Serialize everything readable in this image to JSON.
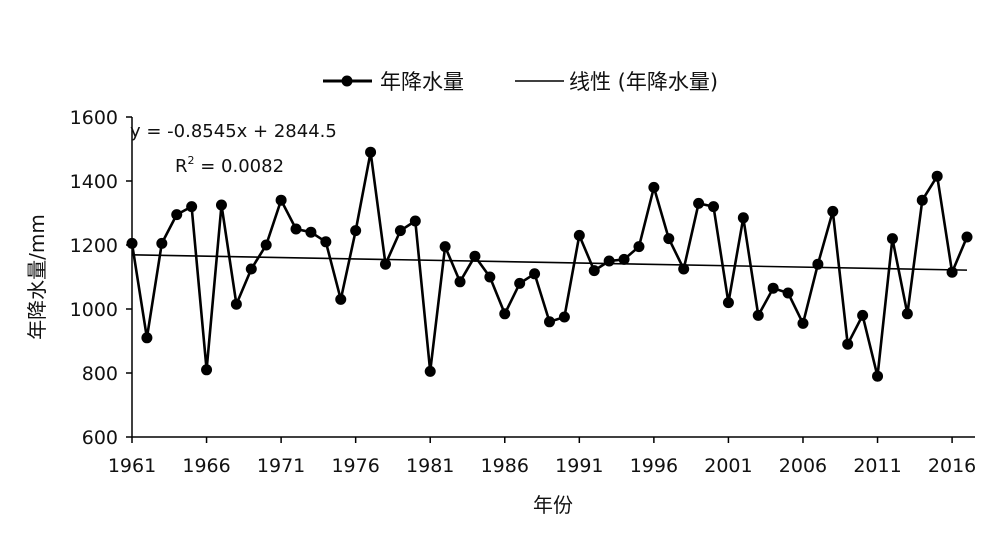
{
  "chart_data": {
    "type": "line",
    "title": "",
    "xlabel": "年份",
    "ylabel": "年降水量/mm",
    "xlim": [
      1961,
      2017
    ],
    "ylim": [
      600,
      1600
    ],
    "x_ticks": [
      1961,
      1966,
      1971,
      1976,
      1981,
      1986,
      1991,
      1996,
      2001,
      2006,
      2011,
      2016
    ],
    "y_ticks": [
      600,
      800,
      1000,
      1200,
      1400,
      1600
    ],
    "grid": false,
    "legend_position": "top",
    "x": [
      1961,
      1962,
      1963,
      1964,
      1965,
      1966,
      1967,
      1968,
      1969,
      1970,
      1971,
      1972,
      1973,
      1974,
      1975,
      1976,
      1977,
      1978,
      1979,
      1980,
      1981,
      1982,
      1983,
      1984,
      1985,
      1986,
      1987,
      1988,
      1989,
      1990,
      1991,
      1992,
      1993,
      1994,
      1995,
      1996,
      1997,
      1998,
      1999,
      2000,
      2001,
      2002,
      2003,
      2004,
      2005,
      2006,
      2007,
      2008,
      2009,
      2010,
      2011,
      2012,
      2013,
      2014,
      2015,
      2016,
      2017
    ],
    "series": [
      {
        "name": "年降水量",
        "color": "#000000",
        "marker": "circle",
        "values": [
          1205,
          910,
          1205,
          1295,
          1320,
          810,
          1325,
          1015,
          1125,
          1200,
          1340,
          1250,
          1240,
          1210,
          1030,
          1245,
          1490,
          1140,
          1245,
          1275,
          805,
          1195,
          1085,
          1165,
          1100,
          985,
          1080,
          1110,
          960,
          975,
          1230,
          1120,
          1150,
          1155,
          1195,
          1380,
          1220,
          1125,
          1330,
          1320,
          1020,
          1285,
          980,
          1065,
          1050,
          955,
          1140,
          1305,
          890,
          980,
          790,
          1220,
          985,
          1340,
          1415,
          1115,
          1225
        ]
      },
      {
        "name": "线性 (年降水量)",
        "color": "#000000",
        "marker": "none",
        "trendline": true,
        "values_at_xlim": [
          1169.3,
          1121.5
        ]
      }
    ],
    "annotations": {
      "equation": "y = -0.8545x + 2844.5",
      "r2_prefix": "R",
      "r2_sup": "2",
      "r2_suffix": " = 0.0082"
    }
  }
}
